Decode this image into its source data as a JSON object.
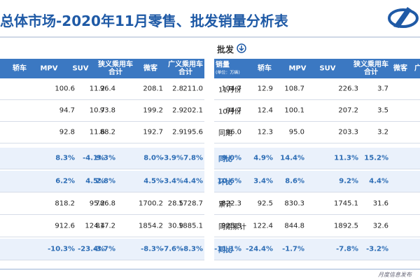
{
  "header": {
    "title": "总体市场-2020年11月零售、批发销量分析表"
  },
  "left_table": {
    "columns": [
      "轿车",
      "MPV",
      "SUV",
      "狭义乘用车合计",
      "微客",
      "广义乘用车合计"
    ],
    "rows": [
      [
        "100.6",
        "11.2",
        "96.4",
        "208.1",
        "2.8",
        "211.0"
      ],
      [
        "94.7",
        "10.7",
        "93.8",
        "199.2",
        "2.9",
        "202.1"
      ],
      [
        "92.8",
        "11.6",
        "88.2",
        "192.7",
        "2.9",
        "195.6"
      ],
      [
        "8.3%",
        "-4.1%",
        "9.3%",
        "8.0%",
        "-3.9%",
        "7.8%"
      ],
      [
        "6.2%",
        "4.5%",
        "2.8%",
        "4.5%",
        "-3.4%",
        "4.4%"
      ],
      [
        "818.2",
        "95.2",
        "786.8",
        "1700.2",
        "28.5",
        "1728.7"
      ],
      [
        "912.6",
        "124.4",
        "817.2",
        "1854.2",
        "30.9",
        "1885.1"
      ],
      [
        "-10.3%",
        "-23.4%",
        "-3.7%",
        "-8.3%",
        "-7.6%",
        "-8.3%"
      ]
    ]
  },
  "right_table": {
    "section": "批发",
    "unit_header": "销量",
    "unit_note": "(单位：万辆)",
    "columns": [
      "轿车",
      "MPV",
      "SUV",
      "狭义乘用车合计",
      "微客",
      "广"
    ],
    "rows": [
      {
        "label": "11月份",
        "values": [
          "104.7",
          "12.9",
          "108.7",
          "226.3",
          "3.7"
        ]
      },
      {
        "label": "10月份",
        "values": [
          "94.7",
          "12.4",
          "100.1",
          "207.2",
          "3.5"
        ]
      },
      {
        "label": "同期",
        "values": [
          "96.0",
          "12.3",
          "95.0",
          "203.3",
          "3.2"
        ]
      },
      {
        "label": "同比",
        "values": [
          "9.0%",
          "4.9%",
          "14.4%",
          "11.3%",
          "15.2%"
        ]
      },
      {
        "label": "环比",
        "values": [
          "10.6%",
          "3.4%",
          "8.6%",
          "9.2%",
          "4.4%"
        ]
      },
      {
        "label": "累计",
        "values": [
          "822.3",
          "92.5",
          "830.3",
          "1745.1",
          "31.6"
        ]
      },
      {
        "label": "同期累计",
        "values": [
          "925.3",
          "122.4",
          "844.8",
          "1892.5",
          "32.6"
        ]
      },
      {
        "label": "同比",
        "values": [
          "-11.1%",
          "-24.4%",
          "-1.7%",
          "-7.8%",
          "-3.2%"
        ]
      }
    ]
  },
  "highlight_rows": [
    3,
    4,
    7
  ],
  "footer": "月度信息发布"
}
